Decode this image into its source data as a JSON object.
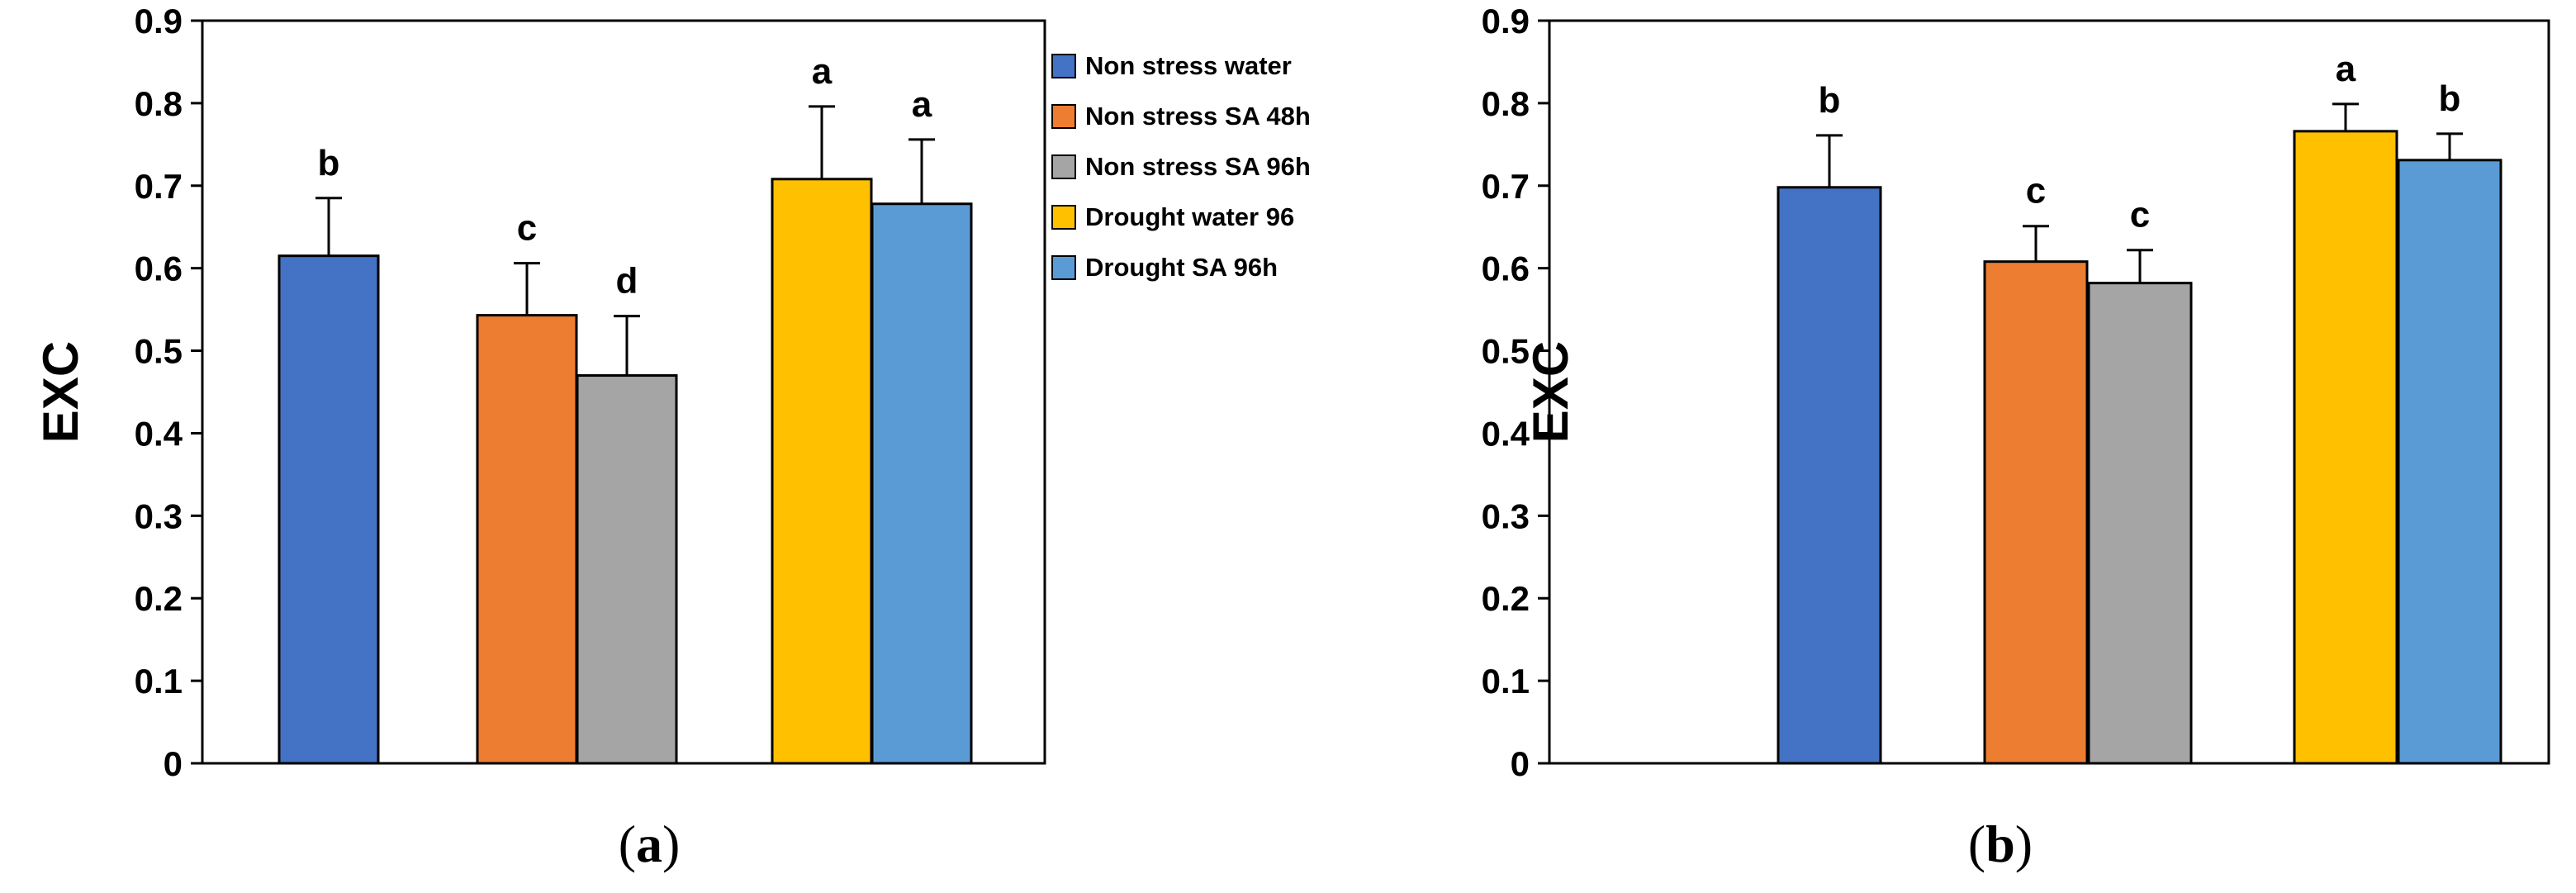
{
  "colors": {
    "Non stress water": "#4472C4",
    "Non stress SA 48h": "#ED7D31",
    "Non stress SA 96h": "#A5A5A5",
    "Drought water 96": "#FFC000",
    "Drought SA 96h": "#5B9BD5"
  },
  "legend": {
    "placement": "right of panel a, inside frame",
    "entries": [
      "Non stress water",
      "Non stress SA 48h",
      "Non stress SA 96h",
      "Drought water 96",
      "Drought SA 96h"
    ]
  },
  "chart_data": [
    {
      "type": "bar",
      "panel": "a",
      "panel_label_open": "(",
      "panel_label_letter": "a",
      "panel_label_close": ")",
      "ylabel": "EXC",
      "ylim": [
        0,
        0.9
      ],
      "yticks": [
        "0",
        "0.1",
        "0.2",
        "0.3",
        "0.4",
        "0.5",
        "0.6",
        "0.7",
        "0.8",
        "0.9"
      ],
      "grid": false,
      "groups": [
        [
          "Non stress water"
        ],
        [
          "Non stress SA 48h",
          "Non stress SA 96h"
        ],
        [
          "Drought water 96",
          "Drought SA 96h"
        ]
      ],
      "series": [
        {
          "name": "Non stress water",
          "value": 0.615,
          "error": 0.07,
          "letter": "b"
        },
        {
          "name": "Non stress SA 48h",
          "value": 0.543,
          "error": 0.063,
          "letter": "c"
        },
        {
          "name": "Non stress SA 96h",
          "value": 0.47,
          "error": 0.072,
          "letter": "d"
        },
        {
          "name": "Drought water 96",
          "value": 0.708,
          "error": 0.088,
          "letter": "a"
        },
        {
          "name": "Drought SA 96h",
          "value": 0.678,
          "error": 0.078,
          "letter": "a"
        }
      ]
    },
    {
      "type": "bar",
      "panel": "b",
      "panel_label_open": "(",
      "panel_label_letter": "b",
      "panel_label_close": ")",
      "ylabel": "EXC",
      "ylim": [
        0,
        0.9
      ],
      "yticks": [
        "0",
        "0.1",
        "0.2",
        "0.3",
        "0.4",
        "0.5",
        "0.6",
        "0.7",
        "0.8",
        "0.9"
      ],
      "grid": false,
      "groups": [
        [
          "Non stress water"
        ],
        [
          "Non stress SA 48h",
          "Non stress SA 96h"
        ],
        [
          "Drought water 96",
          "Drought SA 96h"
        ]
      ],
      "series": [
        {
          "name": "Non stress water",
          "value": 0.698,
          "error": 0.063,
          "letter": "b"
        },
        {
          "name": "Non stress SA 48h",
          "value": 0.608,
          "error": 0.043,
          "letter": "c"
        },
        {
          "name": "Non stress SA 96h",
          "value": 0.582,
          "error": 0.04,
          "letter": "c"
        },
        {
          "name": "Drought water 96",
          "value": 0.766,
          "error": 0.033,
          "letter": "a"
        },
        {
          "name": "Drought SA 96h",
          "value": 0.731,
          "error": 0.032,
          "letter": "b"
        }
      ]
    }
  ]
}
